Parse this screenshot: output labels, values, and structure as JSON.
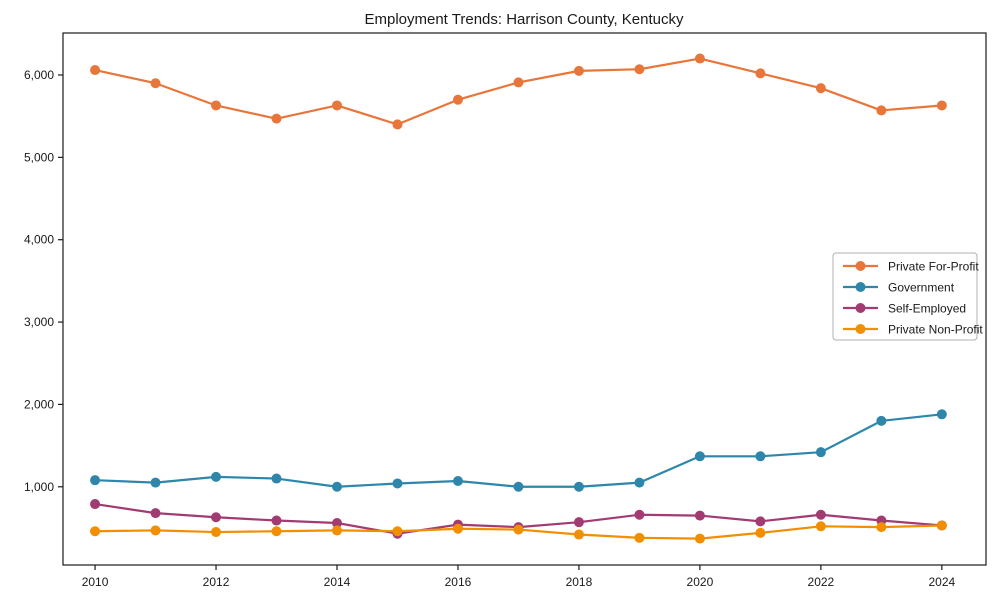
{
  "chart_data": {
    "type": "line",
    "title": "Employment Trends: Harrison County, Kentucky",
    "xlabel": "",
    "ylabel": "",
    "grid": false,
    "marker": "circle",
    "legend_position": "center-right",
    "background_color": "#ffffff",
    "axis_color": "#1a1a1a",
    "legend_border_color": "#b0b0b0",
    "x": [
      2010,
      2011,
      2012,
      2013,
      2014,
      2015,
      2016,
      2017,
      2018,
      2019,
      2020,
      2021,
      2022,
      2023,
      2024
    ],
    "xticks": [
      2010,
      2012,
      2014,
      2016,
      2018,
      2020,
      2022,
      2024
    ],
    "xtick_labels": [
      "2010",
      "2012",
      "2014",
      "2016",
      "2018",
      "2020",
      "2022",
      "2024"
    ],
    "yticks": [
      1000,
      2000,
      3000,
      4000,
      5000,
      6000
    ],
    "ytick_labels": [
      "1,000",
      "2,000",
      "3,000",
      "4,000",
      "5,000",
      "6,000"
    ],
    "xlim": [
      2009.47,
      2024.73
    ],
    "ylim": [
      50,
      6510
    ],
    "series": [
      {
        "name": "Private For-Profit",
        "color": "#e8763a",
        "values": [
          6060,
          5900,
          5630,
          5470,
          5630,
          5400,
          5700,
          5910,
          6050,
          6070,
          6200,
          6020,
          5840,
          5570,
          5630
        ]
      },
      {
        "name": "Government",
        "color": "#2e86ab",
        "values": [
          1080,
          1050,
          1120,
          1100,
          1000,
          1040,
          1070,
          1000,
          1000,
          1050,
          1370,
          1370,
          1420,
          1800,
          1880
        ]
      },
      {
        "name": "Self-Employed",
        "color": "#a23b72",
        "values": [
          790,
          680,
          630,
          590,
          560,
          430,
          540,
          510,
          570,
          660,
          650,
          580,
          660,
          590,
          530
        ]
      },
      {
        "name": "Private Non-Profit",
        "color": "#f18f01",
        "values": [
          460,
          470,
          450,
          460,
          470,
          460,
          490,
          480,
          420,
          380,
          370,
          440,
          520,
          510,
          530
        ]
      }
    ]
  }
}
